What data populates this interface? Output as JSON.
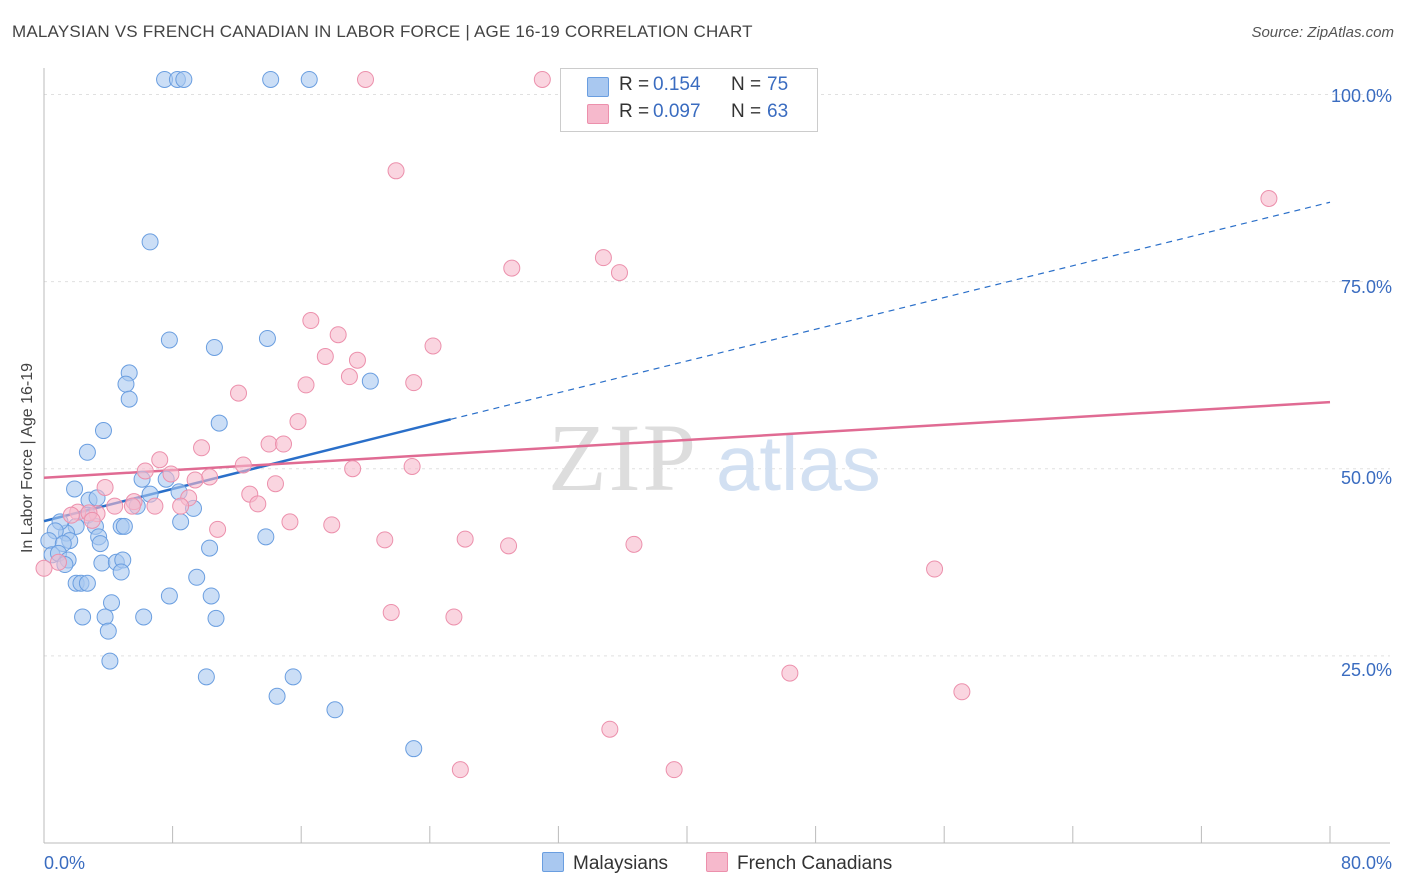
{
  "header": {
    "title": "MALAYSIAN VS FRENCH CANADIAN IN LABOR FORCE | AGE 16-19 CORRELATION CHART",
    "source": "Source: ZipAtlas.com"
  },
  "watermark": {
    "zip": "ZIP",
    "atlas": "atlas"
  },
  "legend": {
    "rows": [
      {
        "r_label": "R =",
        "r_value": "0.154",
        "n_label": "N =",
        "n_value": "75",
        "color": "#a9c8f0"
      },
      {
        "r_label": "R =",
        "r_value": "0.097",
        "n_label": "N =",
        "n_value": "63",
        "color": "#f6b9cc"
      }
    ]
  },
  "bottom_legend": [
    {
      "label": "Malaysians",
      "color": "#a9c8f0"
    },
    {
      "label": "French Canadians",
      "color": "#f6b9cc"
    }
  ],
  "axis_labels": {
    "ylabel": "In Labor Force | Age 16-19",
    "y_ticks": [
      "100.0%",
      "75.0%",
      "50.0%",
      "25.0%"
    ],
    "x_min": "0.0%",
    "x_max": "80.0%"
  },
  "chart_data": {
    "type": "scatter",
    "title": "MALAYSIAN VS FRENCH CANADIAN IN LABOR FORCE | AGE 16-19 CORRELATION CHART",
    "xlabel": "",
    "ylabel": "In Labor Force | Age 16-19",
    "xlim": [
      0,
      80
    ],
    "ylim": [
      0,
      103
    ],
    "y_tick_values": [
      25,
      50,
      75,
      100
    ],
    "grid": true,
    "series": [
      {
        "name": "Malaysians",
        "color": "#a9c8f0",
        "stroke": "#6a9ee0",
        "trend": {
          "x0": 0,
          "y0": 43.0,
          "x1": 25.3,
          "y1": 56.6,
          "dash_x1": 80,
          "dash_y1": 85.6,
          "color": "#2a6fc9"
        },
        "points": [
          [
            7.5,
            102
          ],
          [
            8.3,
            102
          ],
          [
            8.7,
            102
          ],
          [
            14.1,
            102
          ],
          [
            16.5,
            102
          ],
          [
            6.6,
            80.3
          ],
          [
            7.8,
            67.2
          ],
          [
            10.6,
            66.2
          ],
          [
            13.9,
            67.4
          ],
          [
            5.3,
            62.8
          ],
          [
            5.1,
            61.3
          ],
          [
            5.3,
            59.3
          ],
          [
            10.9,
            56.1
          ],
          [
            20.3,
            61.7
          ],
          [
            3.7,
            55.1
          ],
          [
            2.7,
            52.2
          ],
          [
            6.1,
            48.6
          ],
          [
            7.6,
            48.6
          ],
          [
            1.9,
            47.3
          ],
          [
            2.8,
            45.8
          ],
          [
            3.3,
            46.1
          ],
          [
            5.8,
            45.0
          ],
          [
            6.6,
            46.6
          ],
          [
            8.4,
            46.9
          ],
          [
            9.3,
            44.7
          ],
          [
            2.7,
            43.8
          ],
          [
            2.0,
            42.3
          ],
          [
            1.4,
            41.4
          ],
          [
            1.0,
            42.9
          ],
          [
            0.7,
            41.7
          ],
          [
            0.3,
            40.4
          ],
          [
            3.2,
            42.3
          ],
          [
            4.8,
            42.3
          ],
          [
            5.0,
            42.3
          ],
          [
            1.6,
            40.4
          ],
          [
            1.2,
            40.0
          ],
          [
            3.4,
            40.9
          ],
          [
            3.5,
            40.0
          ],
          [
            8.5,
            42.9
          ],
          [
            13.8,
            40.9
          ],
          [
            0.5,
            38.5
          ],
          [
            0.9,
            38.7
          ],
          [
            1.5,
            37.8
          ],
          [
            1.3,
            37.2
          ],
          [
            3.6,
            37.4
          ],
          [
            4.5,
            37.5
          ],
          [
            4.9,
            37.8
          ],
          [
            10.3,
            39.4
          ],
          [
            4.8,
            36.2
          ],
          [
            2.0,
            34.7
          ],
          [
            2.3,
            34.7
          ],
          [
            2.7,
            34.7
          ],
          [
            9.5,
            35.5
          ],
          [
            7.8,
            33.0
          ],
          [
            10.4,
            33.0
          ],
          [
            4.2,
            32.1
          ],
          [
            2.4,
            30.2
          ],
          [
            3.8,
            30.2
          ],
          [
            6.2,
            30.2
          ],
          [
            10.7,
            30.0
          ],
          [
            4.0,
            28.3
          ],
          [
            4.1,
            24.3
          ],
          [
            10.1,
            22.2
          ],
          [
            15.5,
            22.2
          ],
          [
            14.5,
            19.6
          ],
          [
            18.1,
            17.8
          ],
          [
            23.0,
            12.6
          ]
        ]
      },
      {
        "name": "French Canadians",
        "color": "#f6b9cc",
        "stroke": "#ec90ac",
        "trend": {
          "x0": 0,
          "y0": 48.8,
          "x1": 80,
          "y1": 58.9,
          "color": "#e06b93"
        },
        "points": [
          [
            20.0,
            102
          ],
          [
            31.0,
            102
          ],
          [
            21.9,
            89.8
          ],
          [
            76.2,
            86.1
          ],
          [
            29.1,
            76.8
          ],
          [
            34.8,
            78.2
          ],
          [
            35.8,
            76.2
          ],
          [
            16.6,
            69.8
          ],
          [
            18.3,
            67.9
          ],
          [
            17.5,
            65.0
          ],
          [
            19.5,
            64.5
          ],
          [
            24.2,
            66.4
          ],
          [
            16.3,
            61.2
          ],
          [
            19.0,
            62.3
          ],
          [
            23.0,
            61.5
          ],
          [
            12.1,
            60.1
          ],
          [
            15.8,
            56.3
          ],
          [
            14.0,
            53.3
          ],
          [
            14.9,
            53.3
          ],
          [
            9.8,
            52.8
          ],
          [
            7.2,
            51.2
          ],
          [
            6.3,
            49.7
          ],
          [
            7.9,
            49.3
          ],
          [
            12.4,
            50.5
          ],
          [
            19.2,
            50.0
          ],
          [
            22.9,
            50.3
          ],
          [
            10.3,
            48.9
          ],
          [
            9.4,
            48.5
          ],
          [
            14.4,
            48.0
          ],
          [
            3.8,
            47.5
          ],
          [
            9.0,
            46.1
          ],
          [
            12.8,
            46.6
          ],
          [
            5.6,
            45.6
          ],
          [
            4.4,
            45.0
          ],
          [
            5.5,
            45.0
          ],
          [
            6.9,
            45.0
          ],
          [
            13.3,
            45.3
          ],
          [
            8.5,
            45.0
          ],
          [
            2.1,
            44.2
          ],
          [
            1.7,
            43.8
          ],
          [
            3.3,
            44.0
          ],
          [
            2.8,
            44.1
          ],
          [
            3.0,
            43.1
          ],
          [
            15.3,
            42.9
          ],
          [
            17.9,
            42.5
          ],
          [
            10.8,
            41.9
          ],
          [
            21.2,
            40.5
          ],
          [
            26.2,
            40.6
          ],
          [
            28.9,
            39.7
          ],
          [
            36.7,
            39.9
          ],
          [
            0.9,
            37.5
          ],
          [
            0.0,
            36.7
          ],
          [
            55.4,
            36.6
          ],
          [
            21.6,
            30.8
          ],
          [
            25.5,
            30.2
          ],
          [
            46.4,
            22.7
          ],
          [
            57.1,
            20.2
          ],
          [
            35.2,
            15.2
          ],
          [
            25.9,
            9.8
          ],
          [
            39.2,
            9.8
          ]
        ]
      }
    ]
  }
}
